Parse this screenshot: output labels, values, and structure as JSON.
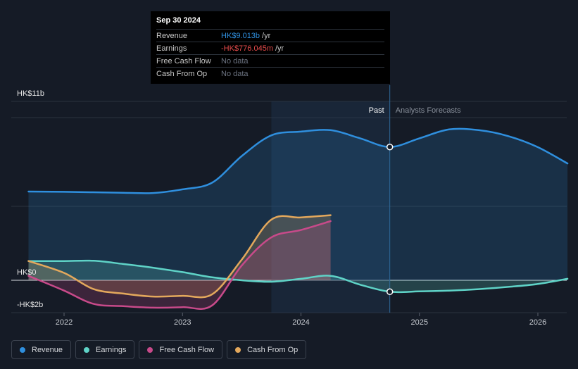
{
  "tooltip": {
    "date": "Sep 30 2024",
    "rows": [
      {
        "label": "Revenue",
        "value": "HK$9.013b",
        "unit": "/yr",
        "color": "#2f8fde"
      },
      {
        "label": "Earnings",
        "value": "-HK$776.045m",
        "unit": "/yr",
        "color": "#e84c4c"
      },
      {
        "label": "Free Cash Flow",
        "value": "No data",
        "unit": "",
        "color": "#6b7280"
      },
      {
        "label": "Cash From Op",
        "value": "No data",
        "unit": "",
        "color": "#6b7280"
      }
    ]
  },
  "labels": {
    "past": "Past",
    "forecast": "Analysts Forecasts"
  },
  "legend": [
    {
      "label": "Revenue",
      "color": "#2f8fde"
    },
    {
      "label": "Earnings",
      "color": "#5fd3c7"
    },
    {
      "label": "Free Cash Flow",
      "color": "#c84a8a"
    },
    {
      "label": "Cash From Op",
      "color": "#e3a85c"
    }
  ],
  "chart_data": {
    "type": "line",
    "y_tick_labels": [
      "HK$11b",
      "HK$0",
      "-HK$2b"
    ],
    "x_tick_labels": [
      "2022",
      "2023",
      "2024",
      "2025",
      "2026"
    ],
    "x_range": [
      2021.65,
      2026.25
    ],
    "ylim": [
      -2.0,
      11.0
    ],
    "divider_x": 2024.75,
    "past_shade_start": 2023.75,
    "series": [
      {
        "name": "Revenue",
        "color": "#2f8fde",
        "fill": true,
        "x": [
          2021.7,
          2022.0,
          2022.5,
          2022.75,
          2023.0,
          2023.25,
          2023.5,
          2023.75,
          2024.0,
          2024.25,
          2024.5,
          2024.75,
          2025.0,
          2025.25,
          2025.5,
          2025.75,
          2026.0,
          2026.25
        ],
        "y": [
          6.0,
          5.98,
          5.92,
          5.9,
          6.15,
          6.6,
          8.4,
          9.8,
          10.05,
          10.15,
          9.6,
          9.013,
          9.6,
          10.2,
          10.15,
          9.75,
          9.0,
          7.9
        ]
      },
      {
        "name": "Earnings",
        "color": "#5fd3c7",
        "fill": true,
        "x": [
          2021.7,
          2022.0,
          2022.25,
          2022.5,
          2022.75,
          2023.0,
          2023.25,
          2023.5,
          2023.75,
          2024.0,
          2024.25,
          2024.5,
          2024.75,
          2025.0,
          2025.25,
          2025.5,
          2025.75,
          2026.0,
          2026.25
        ],
        "y": [
          1.3,
          1.3,
          1.32,
          1.1,
          0.85,
          0.55,
          0.2,
          0.0,
          -0.1,
          0.1,
          0.3,
          -0.3,
          -0.776,
          -0.75,
          -0.7,
          -0.6,
          -0.45,
          -0.25,
          0.1
        ]
      },
      {
        "name": "Free Cash Flow",
        "color": "#c84a8a",
        "fill": true,
        "x": [
          2021.7,
          2022.0,
          2022.25,
          2022.5,
          2022.75,
          2023.0,
          2023.25,
          2023.5,
          2023.75,
          2024.0,
          2024.25
        ],
        "y": [
          0.3,
          -0.7,
          -1.6,
          -1.75,
          -1.85,
          -1.82,
          -1.7,
          1.0,
          2.9,
          3.4,
          4.0
        ]
      },
      {
        "name": "Cash From Op",
        "color": "#e3a85c",
        "fill": true,
        "x": [
          2021.7,
          2022.0,
          2022.25,
          2022.5,
          2022.75,
          2023.0,
          2023.25,
          2023.5,
          2023.75,
          2024.0,
          2024.25
        ],
        "y": [
          1.3,
          0.5,
          -0.6,
          -0.9,
          -1.1,
          -1.05,
          -0.95,
          1.4,
          4.1,
          4.25,
          4.4
        ]
      }
    ],
    "highlight_points": [
      {
        "series": "Revenue",
        "x": 2024.75,
        "y": 9.013
      },
      {
        "series": "Earnings",
        "x": 2024.75,
        "y": -0.776
      }
    ]
  }
}
